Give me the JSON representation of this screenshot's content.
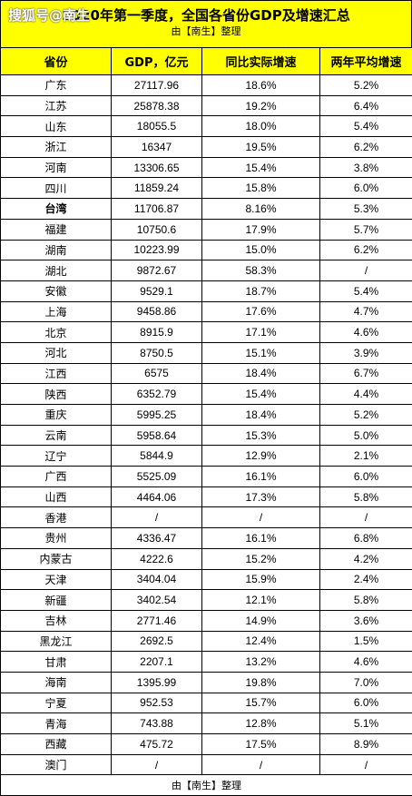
{
  "title": "2020年第一季度，全国各省份GDP及增速汇总",
  "watermark": "搜狐号@南生",
  "subtitle": "由【南生】整理",
  "columns": [
    "省份",
    "GDP，亿元",
    "同比实际增速",
    "两年平均增速"
  ],
  "rows": [
    [
      "广东",
      "27117.96",
      "18.6%",
      "5.2%"
    ],
    [
      "江苏",
      "25878.38",
      "19.2%",
      "6.4%"
    ],
    [
      "山东",
      "18055.5",
      "18.0%",
      "5.4%"
    ],
    [
      "浙江",
      "16347",
      "19.5%",
      "6.2%"
    ],
    [
      "河南",
      "13306.65",
      "15.4%",
      "3.8%"
    ],
    [
      "四川",
      "11859.24",
      "15.8%",
      "6.0%"
    ],
    [
      "台湾",
      "11706.87",
      "8.16%",
      "5.3%"
    ],
    [
      "福建",
      "10750.6",
      "17.9%",
      "5.7%"
    ],
    [
      "湖南",
      "10223.99",
      "15.0%",
      "6.2%"
    ],
    [
      "湖北",
      "9872.67",
      "58.3%",
      "/"
    ],
    [
      "安徽",
      "9529.1",
      "18.7%",
      "5.4%"
    ],
    [
      "上海",
      "9458.86",
      "17.6%",
      "4.7%"
    ],
    [
      "北京",
      "8915.9",
      "17.1%",
      "4.6%"
    ],
    [
      "河北",
      "8750.5",
      "15.1%",
      "3.9%"
    ],
    [
      "江西",
      "6575",
      "18.4%",
      "6.7%"
    ],
    [
      "陕西",
      "6352.79",
      "15.4%",
      "4.4%"
    ],
    [
      "重庆",
      "5995.25",
      "18.4%",
      "5.2%"
    ],
    [
      "云南",
      "5958.64",
      "15.3%",
      "5.0%"
    ],
    [
      "辽宁",
      "5844.9",
      "12.9%",
      "2.1%"
    ],
    [
      "广西",
      "5525.09",
      "16.1%",
      "6.0%"
    ],
    [
      "山西",
      "4464.06",
      "17.3%",
      "5.8%"
    ],
    [
      "香港",
      "/",
      "/",
      "/"
    ],
    [
      "贵州",
      "4336.47",
      "16.1%",
      "6.8%"
    ],
    [
      "内蒙古",
      "4222.6",
      "15.2%",
      "4.2%"
    ],
    [
      "天津",
      "3404.04",
      "15.9%",
      "2.4%"
    ],
    [
      "新疆",
      "3402.54",
      "12.1%",
      "5.8%"
    ],
    [
      "吉林",
      "2771.46",
      "14.9%",
      "3.6%"
    ],
    [
      "黑龙江",
      "2692.5",
      "12.4%",
      "1.5%"
    ],
    [
      "甘肃",
      "2207.1",
      "13.2%",
      "4.6%"
    ],
    [
      "海南",
      "1395.99",
      "19.8%",
      "7.0%"
    ],
    [
      "宁夏",
      "952.53",
      "15.7%",
      "6.0%"
    ],
    [
      "青海",
      "743.88",
      "12.8%",
      "5.1%"
    ],
    [
      "西藏",
      "475.72",
      "17.5%",
      "8.9%"
    ],
    [
      "澳门",
      "/",
      "/",
      "/"
    ]
  ],
  "footer": "由【南生】整理"
}
